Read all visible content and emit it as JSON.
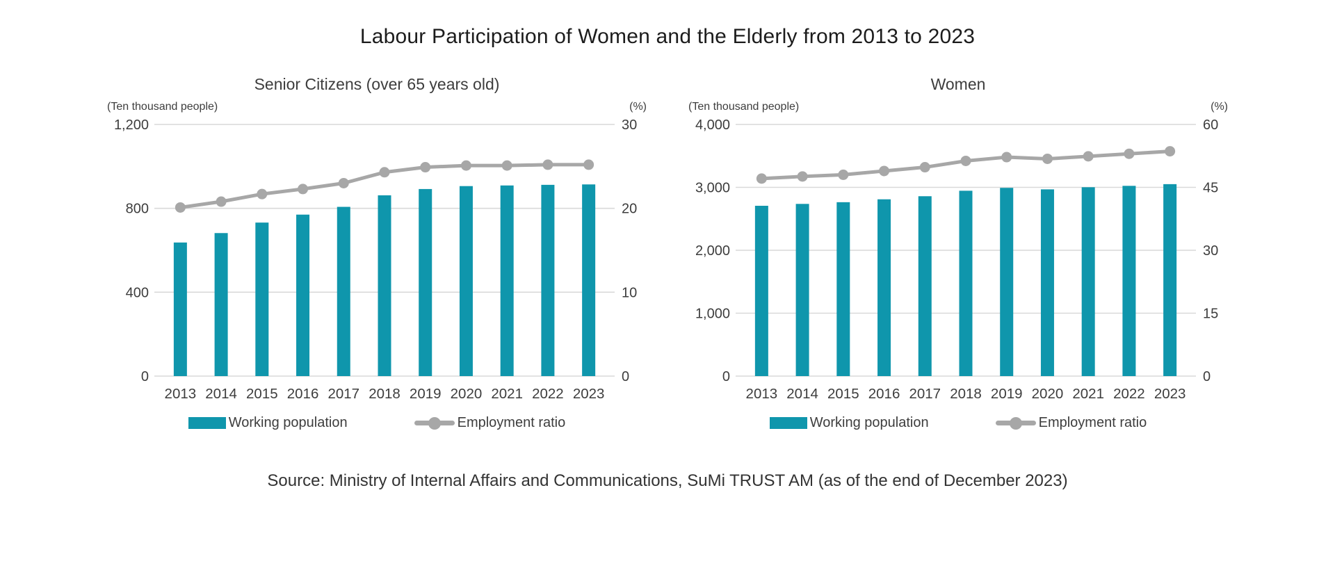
{
  "page": {
    "title": "Labour Participation of Women and the Elderly from 2013 to 2023",
    "source": "Source: Ministry of Internal Affairs and Communications, SuMi TRUST AM (as of the end of December 2023)"
  },
  "colors": {
    "bar": "#0f96ac",
    "line": "#a7a7a7",
    "grid": "#d9d9d9",
    "axis_text": "#3d3d3d",
    "title_text": "#1c1c1c"
  },
  "legend": {
    "working_population": "Working population",
    "employment_ratio": "Employment ratio"
  },
  "chart_data": [
    {
      "type": "bar",
      "subtype": "bar+line dual-axis combo",
      "title": "Senior Citizens (over 65 years old)",
      "unit_left": "(Ten thousand people)",
      "unit_right": "(%)",
      "categories": [
        "2013",
        "2014",
        "2015",
        "2016",
        "2017",
        "2018",
        "2019",
        "2020",
        "2021",
        "2022",
        "2023"
      ],
      "series": [
        {
          "name": "Working population",
          "type": "bar",
          "axis": "left",
          "values": [
            637,
            682,
            732,
            770,
            807,
            862,
            892,
            906,
            909,
            912,
            914
          ]
        },
        {
          "name": "Employment ratio",
          "type": "line",
          "axis": "right",
          "values": [
            20.1,
            20.8,
            21.7,
            22.3,
            23.0,
            24.3,
            24.9,
            25.1,
            25.1,
            25.2,
            25.2
          ]
        }
      ],
      "left_axis": {
        "range": [
          0,
          1200
        ],
        "tick_values": [
          0,
          400,
          800,
          1200
        ],
        "tick_labels": [
          "0",
          "400",
          "800",
          "1,200"
        ]
      },
      "right_axis": {
        "range": [
          0,
          30
        ],
        "tick_values": [
          0,
          10,
          20,
          30
        ],
        "tick_labels": [
          "0",
          "10",
          "20",
          "30"
        ]
      },
      "grid": true,
      "legend_position": "bottom"
    },
    {
      "type": "bar",
      "subtype": "bar+line dual-axis combo",
      "title": "Women",
      "unit_left": "(Ten thousand people)",
      "unit_right": "(%)",
      "categories": [
        "2013",
        "2014",
        "2015",
        "2016",
        "2017",
        "2018",
        "2019",
        "2020",
        "2021",
        "2022",
        "2023"
      ],
      "series": [
        {
          "name": "Working population",
          "type": "bar",
          "axis": "left",
          "values": [
            2707,
            2737,
            2764,
            2810,
            2859,
            2946,
            2992,
            2968,
            3002,
            3024,
            3051
          ]
        },
        {
          "name": "Employment ratio",
          "type": "line",
          "axis": "right",
          "values": [
            47.1,
            47.6,
            48.0,
            48.9,
            49.8,
            51.3,
            52.2,
            51.8,
            52.4,
            53.0,
            53.6
          ]
        }
      ],
      "left_axis": {
        "range": [
          0,
          4000
        ],
        "tick_values": [
          0,
          1000,
          2000,
          3000,
          4000
        ],
        "tick_labels": [
          "0",
          "1,000",
          "2,000",
          "3,000",
          "4,000"
        ]
      },
      "right_axis": {
        "range": [
          0,
          60
        ],
        "tick_values": [
          0,
          15,
          30,
          45,
          60
        ],
        "tick_labels": [
          "0",
          "15",
          "30",
          "45",
          "60"
        ]
      },
      "grid": true,
      "legend_position": "bottom"
    }
  ]
}
